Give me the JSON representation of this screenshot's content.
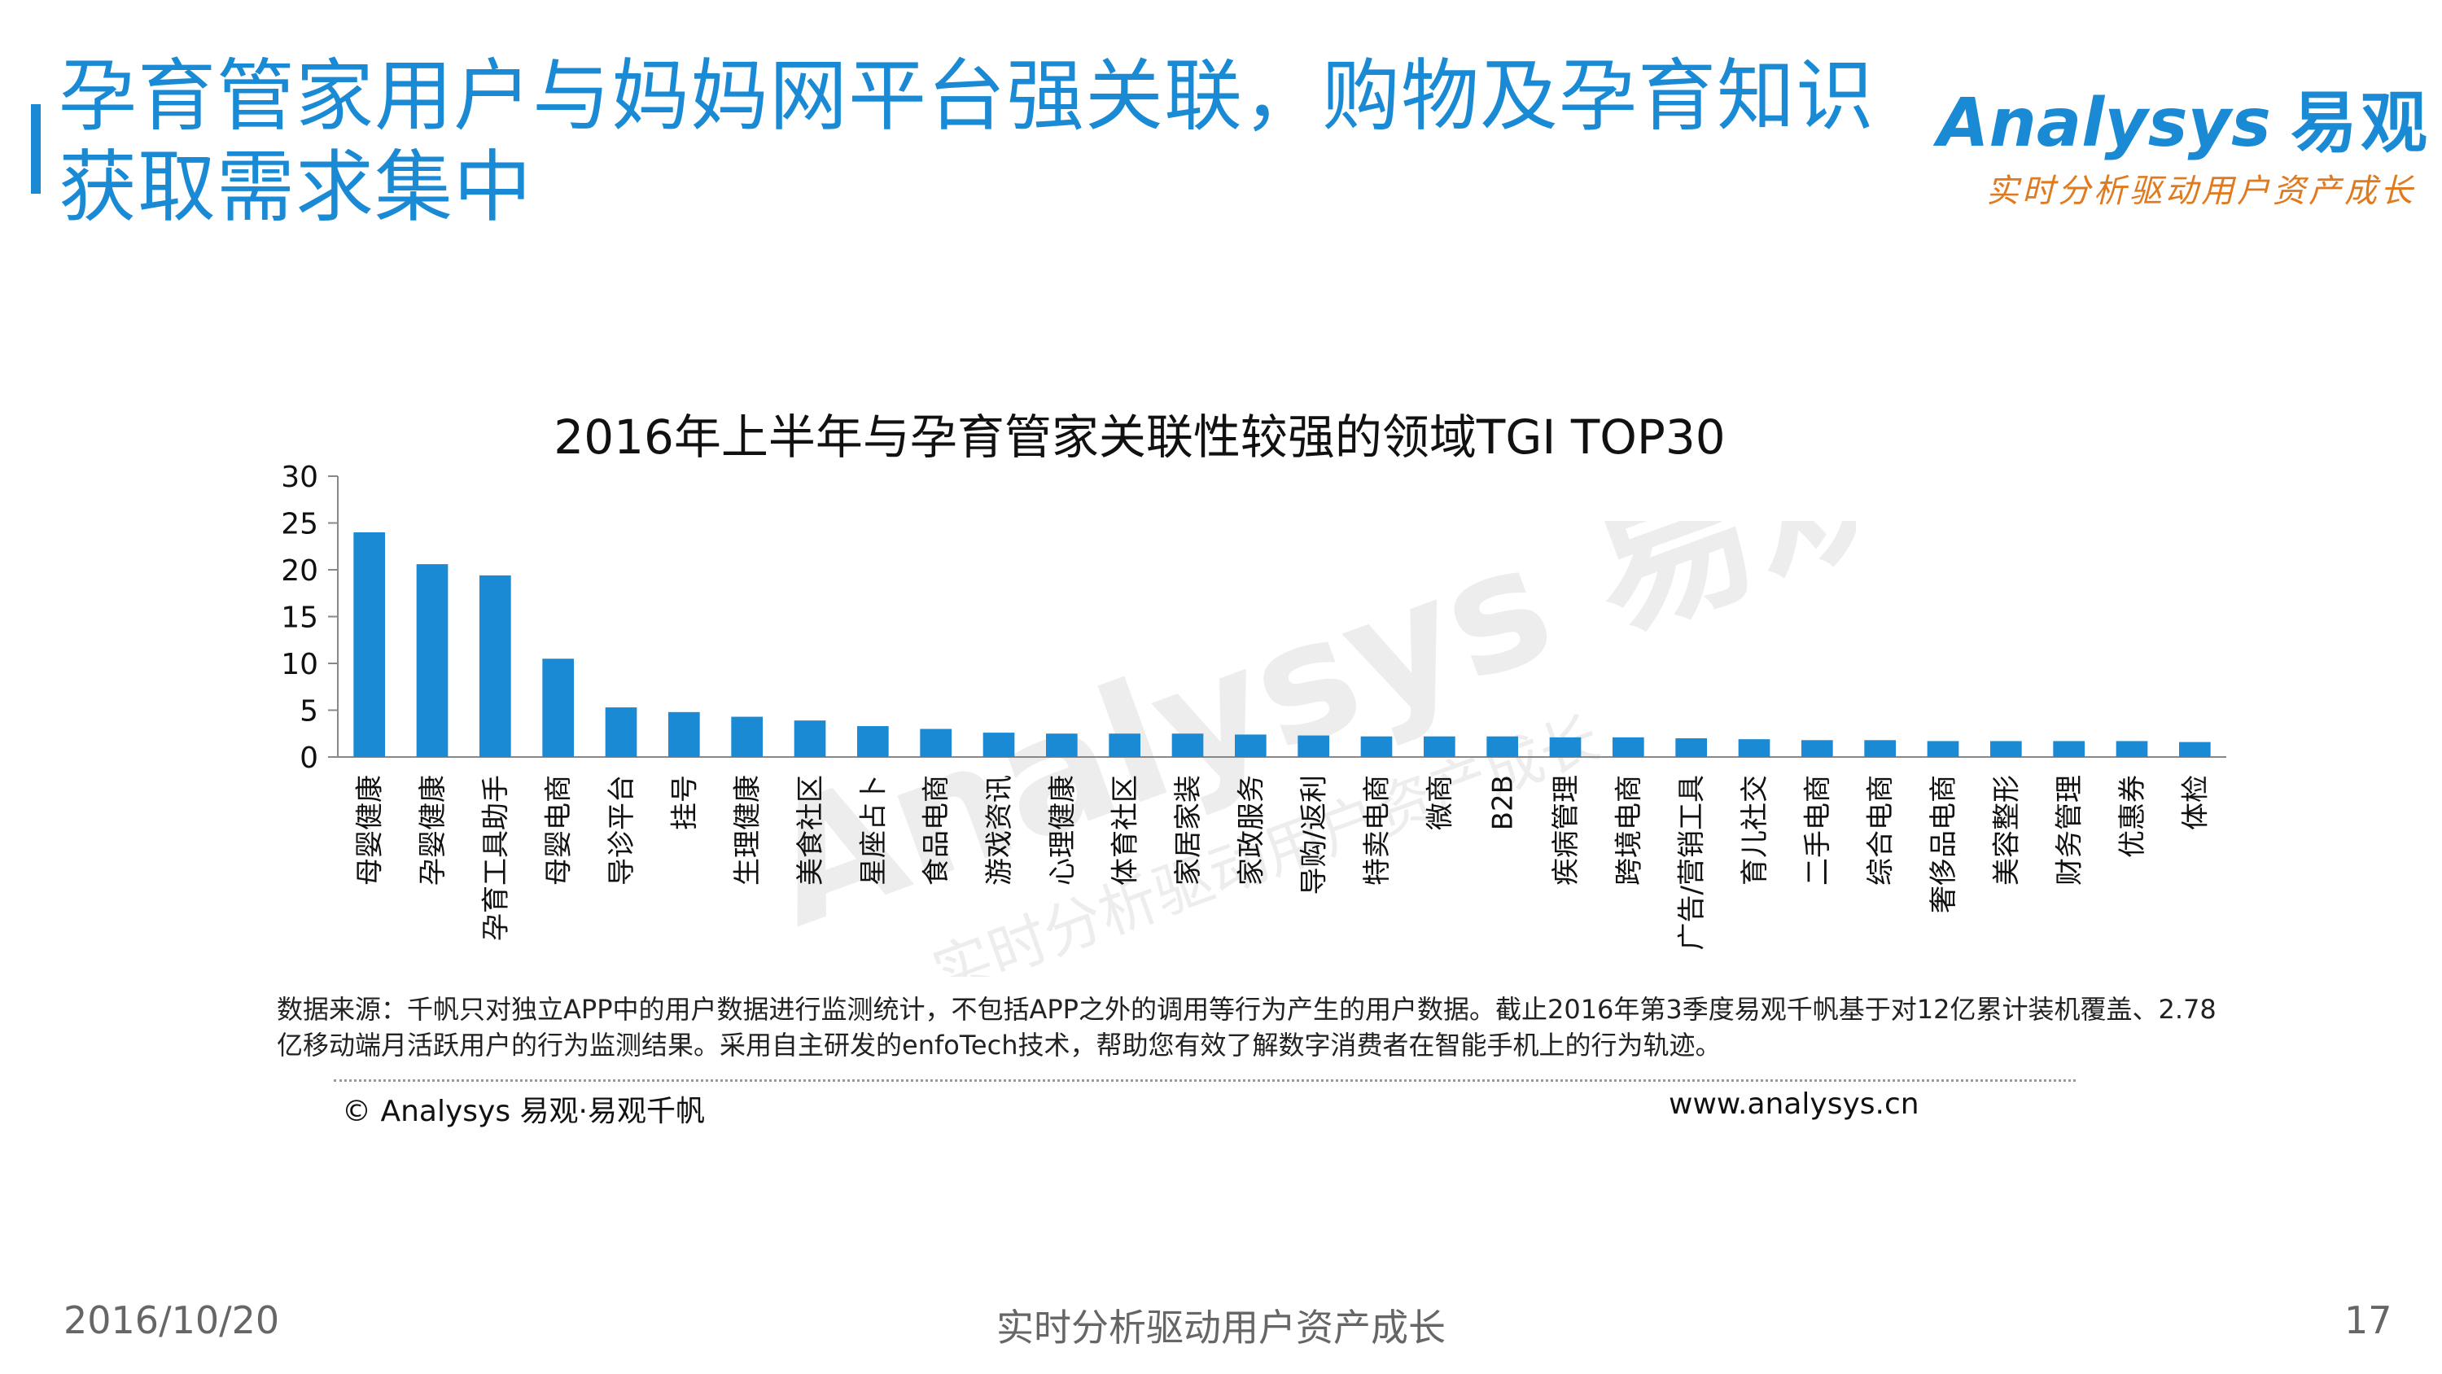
{
  "slide": {
    "title": "孕育管家用户与妈妈网平台强关联，购物及孕育知识获取需求集中",
    "logo_text": "Analysys",
    "logo_cn": "易观",
    "logo_slogan": "实时分析驱动用户资产成长",
    "accent_color": "#1a8ad4"
  },
  "watermark": {
    "brand": "Analysys 易观",
    "slogan": "实时分析驱动用户资产成长"
  },
  "chart_data": {
    "type": "bar",
    "title": "2016年上半年与孕育管家关联性较强的领域TGI TOP30",
    "xlabel": "",
    "ylabel": "",
    "ylim": [
      0,
      30
    ],
    "yticks": [
      0,
      5,
      10,
      15,
      20,
      25,
      30
    ],
    "bar_color": "#1a8ad4",
    "grid": false,
    "categories": [
      "母婴健康",
      "孕婴健康",
      "孕育工具助手",
      "母婴电商",
      "导诊平台",
      "挂号",
      "生理健康",
      "美食社区",
      "星座占卜",
      "食品电商",
      "游戏资讯",
      "心理健康",
      "体育社区",
      "家居家装",
      "家政服务",
      "导购/返利",
      "特卖电商",
      "微商",
      "B2B",
      "疾病管理",
      "跨境电商",
      "广告/营销工具",
      "育儿社交",
      "二手电商",
      "综合电商",
      "奢侈品电商",
      "美容整形",
      "财务管理",
      "优惠券",
      "体检"
    ],
    "values": [
      24.0,
      20.6,
      19.4,
      10.5,
      5.3,
      4.8,
      4.3,
      3.9,
      3.3,
      3.0,
      2.6,
      2.5,
      2.5,
      2.5,
      2.4,
      2.3,
      2.2,
      2.2,
      2.2,
      2.1,
      2.1,
      2.0,
      1.9,
      1.8,
      1.8,
      1.7,
      1.7,
      1.7,
      1.7,
      1.6
    ]
  },
  "notes": {
    "source": "数据来源：千帆只对独立APP中的用户数据进行监测统计，不包括APP之外的调用等行为产生的用户数据。截止2016年第3季度易观千帆基于对12亿累计装机覆盖、2.78亿移动端月活跃用户的行为监测结果。采用自主研发的enfoTech技术，帮助您有效了解数字消费者在智能手机上的行为轨迹。",
    "copyright": "© Analysys 易观·易观千帆",
    "website": "www.analysys.cn"
  },
  "footer": {
    "date": "2016/10/20",
    "slogan": "实时分析驱动用户资产成长",
    "page": "17"
  }
}
